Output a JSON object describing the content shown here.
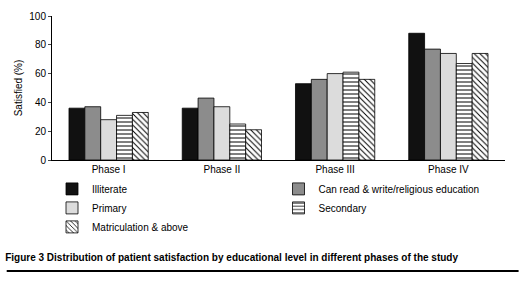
{
  "chart_data": {
    "type": "bar",
    "title": "Figure 3 Distribution of patient satisfaction by educational level in different phases of the study",
    "y_label": "Satisfied (%)",
    "categories": [
      "Phase I",
      "Phase II",
      "Phase III",
      "Phase IV"
    ],
    "series": [
      {
        "name": "Illiterate",
        "color": "#111111",
        "values": [
          36,
          36,
          53,
          88
        ]
      },
      {
        "name": "Can read & write/religious education",
        "color": "#8c8c8c",
        "values": [
          37,
          43,
          56,
          77
        ]
      },
      {
        "name": "Primary",
        "color": "#dcdcdc",
        "values": [
          28,
          37,
          60,
          74
        ]
      },
      {
        "name": "Secondary",
        "color": "#ffffff",
        "values": [
          31,
          25,
          61,
          67
        ]
      },
      {
        "name": "Matriculation & above",
        "color": "#ffffff",
        "values": [
          33,
          21,
          56,
          74
        ]
      }
    ],
    "ylim": [
      0,
      100
    ],
    "yticks": [
      0,
      20,
      40,
      60,
      80,
      100
    ],
    "grid": false,
    "legend": "bottom"
  }
}
